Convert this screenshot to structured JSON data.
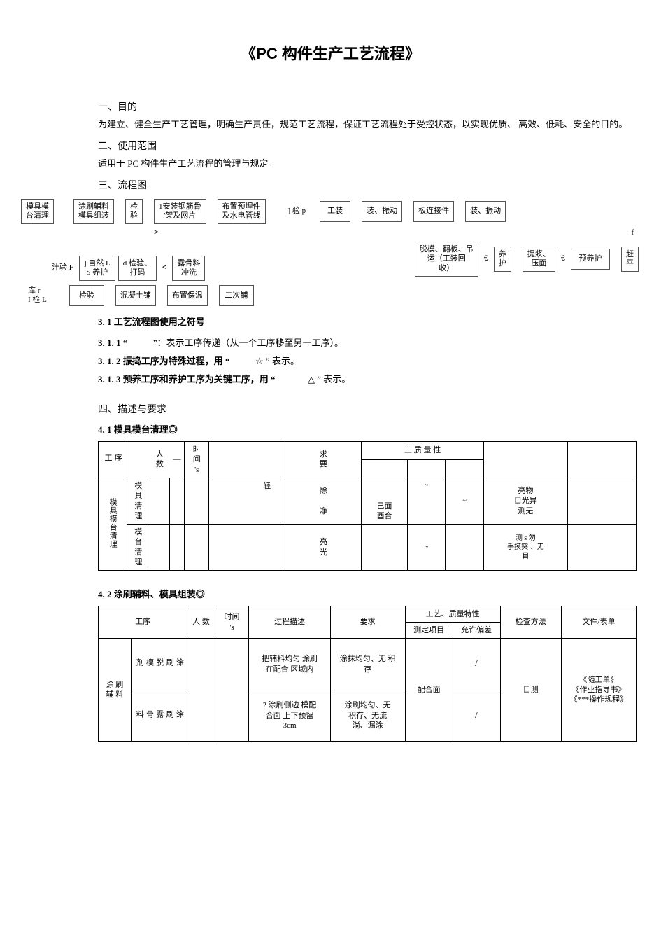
{
  "doc": {
    "title": "《PC 构件生产工艺流程》",
    "s1_head": "一、目的",
    "s1_body": "为建立、健全生产工艺管理，明确生产责任，规范工艺流程，保证工艺流程处于受控状态，以实现优质、 高效、低耗、安全的目的。",
    "s2_head": "二、使用范围",
    "s2_body": "适用于 PC 构件生产工艺流程的管理与规定。",
    "s3_head": "三、流程图",
    "s3_sub1": "3. 1 工艺流程图使用之符号",
    "s3_item1_label": "3. 1. 1 “",
    "s3_item1_tail": "”：表示工序传递（从一个工序移至另一工序）。",
    "s3_item2_label": "3. 1. 2 振捣工序为特殊过程，用 “",
    "s3_item2_tail": "” 表示。",
    "s3_item3_label": "3. 1. 3 预养工序和养护工序为关键工序，用 “",
    "s3_item3_tail": "” 表示。",
    "star": "☆",
    "triangle": "△",
    "s4_head": "四、描述与要求",
    "s4_1_head": "4. 1 模具模台清理◎",
    "s4_2_head": "4. 2 涂刷辅料、模具组装◎"
  },
  "flow": {
    "r1": [
      "模具模",
      "台清理",
      "涂刷辅料",
      "模具组装",
      "检",
      "验",
      "1安装钢筋骨",
      "'架及网片",
      "布置预埋件",
      "及水电管线",
      "] 验 p",
      "工装",
      "装、振动",
      "板连接件",
      "装、振动"
    ],
    "r2": [
      "脱模、翻板、吊",
      "运（工装回",
      "收）",
      "养",
      "护",
      "提浆、",
      "压面",
      "预养护",
      "赶",
      "平"
    ],
    "r3_left": [
      "汁验 F",
      "] 自然 L",
      "S 养护",
      "d 检验、",
      "打码",
      "露骨料",
      "冲洗"
    ],
    "r3_bottom": [
      "库 r",
      "I 检 L",
      "检验",
      "混凝土铺",
      "布置保温",
      "二次铺"
    ],
    "arrow_gt": ">",
    "arrow_eu": "€",
    "arrow_f": "f",
    "arrow_lt": "<",
    "arrow_bend": "€"
  },
  "tbl1": {
    "headers": {
      "seq": "序\n工",
      "people": "人\n数",
      "dash": "—",
      "time": "时\n间\n's",
      "req": "求\n要",
      "char_group": "工  质  量  性",
      "blank1": "",
      "blank2": ""
    },
    "row_group": "模具模台清理",
    "r1": {
      "sub": "模\n具\n清\n理",
      "a": "",
      "b": "",
      "c": "轻",
      "req": "除\n\n净",
      "m1": "己面\n酉合",
      "m2": "~",
      "m3": "~",
      "chk": "亮物\n目光异\n测无",
      "doc": ""
    },
    "r2": {
      "sub": "模\n台\n清\n理",
      "a": "",
      "b": "",
      "c": "",
      "req": "亮\n光",
      "m1": "",
      "m2": "~",
      "m3": "",
      "chk": "测 s   勿\n手摸突 、无\n目",
      "doc": ""
    }
  },
  "tbl2": {
    "headers": {
      "proc": "工序",
      "people": "人 数",
      "time": "时间\n's",
      "desc": "过程描述",
      "req": "要求",
      "char_group": "工艺、质量特性",
      "meas": "测定项目",
      "tol": "允许偏差",
      "chk": "检查方法",
      "doc": "文件/表单"
    },
    "row_group": "涂 刷\n辅  料",
    "r1": {
      "sub": "涂\n刷\n脱\n模\n剂",
      "desc": "把辅料均匀 涂刷\n在配合 区域内",
      "req": "涂抹均匀、无 积\n存",
      "tol": "/"
    },
    "r2": {
      "sub": "涂\n刷\n露\n骨\n料",
      "desc": "? 涂刷侧边 模配\n合面 上下预留\n3cm",
      "req": "涂刷均匀、无\n积存、无流\n淌、漏涂",
      "tol": "/"
    },
    "shared": {
      "meas": "配合面",
      "chk": "目测",
      "doc": "《随工单》\n《作业指导书》\n《***操作规程》"
    }
  },
  "colors": {
    "text": "#000000",
    "bg": "#ffffff",
    "border": "#000000",
    "flow_border": "#555555"
  }
}
